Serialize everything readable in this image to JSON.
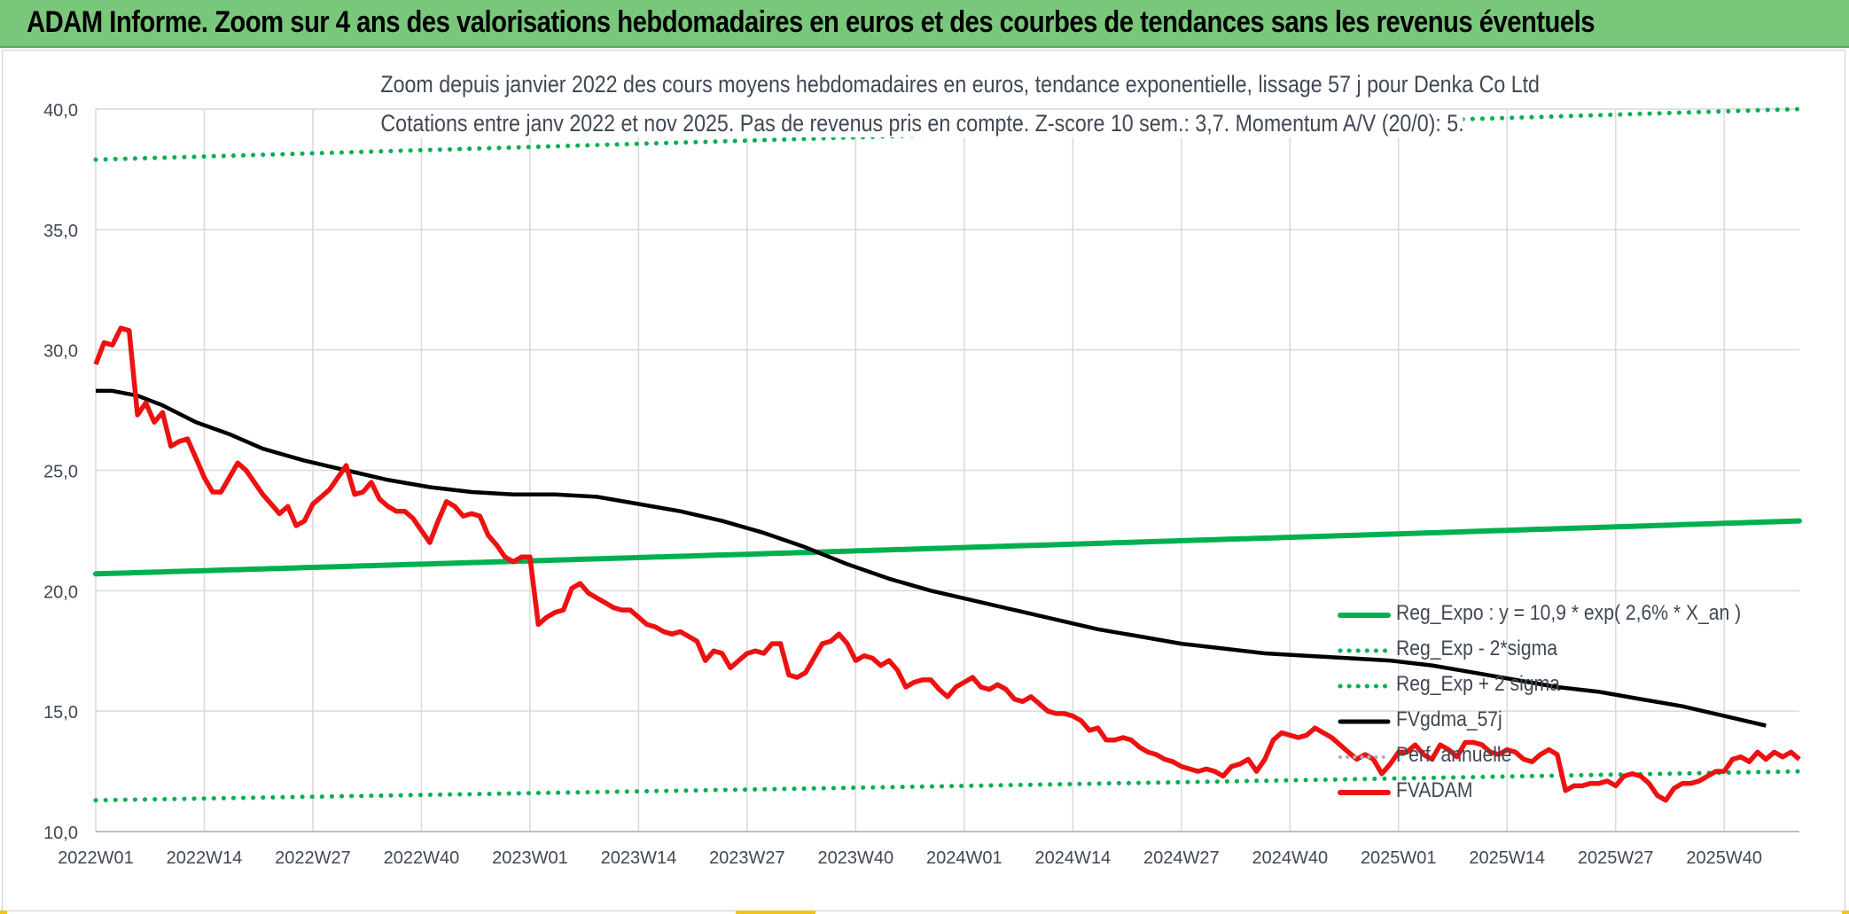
{
  "header": {
    "title": "ADAM Informe. Zoom sur 4 ans des valorisations hebdomadaires en euros et des courbes de tendances sans les revenus éventuels"
  },
  "colors": {
    "banner": "#79c77b",
    "price": "#ee1111",
    "trend": "#00b050",
    "mma": "#000000",
    "grid": "#d9d9d9",
    "text": "#404854"
  },
  "chart_data": {
    "type": "line",
    "title": "Zoom depuis janvier 2022 des cours moyens hebdomadaires en euros, tendance exponentielle, lissage 57 j pour Denka Co Ltd",
    "subtitle": "Cotations entre janv 2022 et nov 2025. Pas de revenus pris en compte. Z-score 10 sem.: 3,7. Momentum A/V (20/0): 5.",
    "xlabel": "",
    "ylabel": "",
    "ylim": [
      10,
      40
    ],
    "y_ticks": [
      "10,0",
      "15,0",
      "20,0",
      "25,0",
      "30,0",
      "35,0",
      "40,0"
    ],
    "x_ticks": [
      "2022W01",
      "2022W14",
      "2022W27",
      "2022W40",
      "2023W01",
      "2023W14",
      "2023W27",
      "2023W40",
      "2024W01",
      "2024W14",
      "2024W27",
      "2024W40",
      "2025W01",
      "2025W14",
      "2025W27",
      "2025W40"
    ],
    "n_weeks": 205,
    "grid": "vertical and horizontal",
    "legend_position": "right, lower-middle",
    "series": [
      {
        "name": "Reg_Expo : y = 10,9 * exp( 2,6% *  X_an )",
        "style": "solid-thick",
        "color": "#00b050",
        "values_from_to": [
          20.7,
          22.9
        ]
      },
      {
        "name": "Reg_Exp - 2*sigma",
        "style": "dotted",
        "color": "#00b050",
        "values_from_to": [
          11.3,
          12.5
        ]
      },
      {
        "name": "Reg_Exp + 2 sigma",
        "style": "dotted",
        "color": "#00b050",
        "values_from_to": [
          37.9,
          40.0
        ]
      },
      {
        "name": "FVgdma_57j",
        "style": "solid",
        "color": "#000000",
        "points": [
          [
            0,
            28.3
          ],
          [
            2,
            28.3
          ],
          [
            5,
            28.1
          ],
          [
            8,
            27.7
          ],
          [
            12,
            27.0
          ],
          [
            16,
            26.5
          ],
          [
            20,
            25.9
          ],
          [
            25,
            25.4
          ],
          [
            30,
            25.0
          ],
          [
            35,
            24.6
          ],
          [
            40,
            24.3
          ],
          [
            45,
            24.1
          ],
          [
            50,
            24.0
          ],
          [
            55,
            24.0
          ],
          [
            60,
            23.9
          ],
          [
            65,
            23.6
          ],
          [
            70,
            23.3
          ],
          [
            75,
            22.9
          ],
          [
            80,
            22.4
          ],
          [
            85,
            21.8
          ],
          [
            90,
            21.1
          ],
          [
            95,
            20.5
          ],
          [
            100,
            20.0
          ],
          [
            105,
            19.6
          ],
          [
            110,
            19.2
          ],
          [
            115,
            18.8
          ],
          [
            120,
            18.4
          ],
          [
            125,
            18.1
          ],
          [
            130,
            17.8
          ],
          [
            135,
            17.6
          ],
          [
            140,
            17.4
          ],
          [
            145,
            17.3
          ],
          [
            150,
            17.2
          ],
          [
            155,
            17.1
          ],
          [
            160,
            16.9
          ],
          [
            165,
            16.6
          ],
          [
            170,
            16.3
          ],
          [
            175,
            16.0
          ],
          [
            180,
            15.8
          ],
          [
            185,
            15.5
          ],
          [
            190,
            15.2
          ],
          [
            195,
            14.8
          ],
          [
            200,
            14.4
          ]
        ]
      },
      {
        "name": "Perf. annuelle",
        "style": "dotted",
        "color": "#b0b0b0"
      },
      {
        "name": "FVADAM",
        "style": "solid-thick",
        "color": "#ee1111",
        "points": [
          [
            0,
            29.4
          ],
          [
            1,
            30.3
          ],
          [
            2,
            30.2
          ],
          [
            3,
            30.9
          ],
          [
            4,
            30.8
          ],
          [
            5,
            27.3
          ],
          [
            6,
            27.8
          ],
          [
            7,
            27.0
          ],
          [
            8,
            27.4
          ],
          [
            9,
            26.0
          ],
          [
            10,
            26.2
          ],
          [
            11,
            26.3
          ],
          [
            12,
            25.5
          ],
          [
            13,
            24.7
          ],
          [
            14,
            24.1
          ],
          [
            15,
            24.1
          ],
          [
            16,
            24.7
          ],
          [
            17,
            25.3
          ],
          [
            18,
            25.0
          ],
          [
            19,
            24.5
          ],
          [
            20,
            24.0
          ],
          [
            21,
            23.6
          ],
          [
            22,
            23.2
          ],
          [
            23,
            23.5
          ],
          [
            24,
            22.7
          ],
          [
            25,
            22.9
          ],
          [
            26,
            23.6
          ],
          [
            27,
            23.9
          ],
          [
            28,
            24.2
          ],
          [
            29,
            24.7
          ],
          [
            30,
            25.2
          ],
          [
            31,
            24.0
          ],
          [
            32,
            24.1
          ],
          [
            33,
            24.5
          ],
          [
            34,
            23.8
          ],
          [
            35,
            23.5
          ],
          [
            36,
            23.3
          ],
          [
            37,
            23.3
          ],
          [
            38,
            23.0
          ],
          [
            39,
            22.5
          ],
          [
            40,
            22.0
          ],
          [
            41,
            22.9
          ],
          [
            42,
            23.7
          ],
          [
            43,
            23.5
          ],
          [
            44,
            23.1
          ],
          [
            45,
            23.2
          ],
          [
            46,
            23.1
          ],
          [
            47,
            22.3
          ],
          [
            48,
            21.9
          ],
          [
            49,
            21.4
          ],
          [
            50,
            21.2
          ],
          [
            51,
            21.4
          ],
          [
            52,
            21.4
          ],
          [
            53,
            18.6
          ],
          [
            54,
            18.9
          ],
          [
            55,
            19.1
          ],
          [
            56,
            19.2
          ],
          [
            57,
            20.1
          ],
          [
            58,
            20.3
          ],
          [
            59,
            19.9
          ],
          [
            60,
            19.7
          ],
          [
            61,
            19.5
          ],
          [
            62,
            19.3
          ],
          [
            63,
            19.2
          ],
          [
            64,
            19.2
          ],
          [
            65,
            18.9
          ],
          [
            66,
            18.6
          ],
          [
            67,
            18.5
          ],
          [
            68,
            18.3
          ],
          [
            69,
            18.2
          ],
          [
            70,
            18.3
          ],
          [
            71,
            18.1
          ],
          [
            72,
            17.9
          ],
          [
            73,
            17.1
          ],
          [
            74,
            17.5
          ],
          [
            75,
            17.4
          ],
          [
            76,
            16.8
          ],
          [
            77,
            17.1
          ],
          [
            78,
            17.4
          ],
          [
            79,
            17.5
          ],
          [
            80,
            17.4
          ],
          [
            81,
            17.8
          ],
          [
            82,
            17.8
          ],
          [
            83,
            16.5
          ],
          [
            84,
            16.4
          ],
          [
            85,
            16.6
          ],
          [
            86,
            17.2
          ],
          [
            87,
            17.8
          ],
          [
            88,
            17.9
          ],
          [
            89,
            18.2
          ],
          [
            90,
            17.8
          ],
          [
            91,
            17.1
          ],
          [
            92,
            17.3
          ],
          [
            93,
            17.2
          ],
          [
            94,
            16.9
          ],
          [
            95,
            17.1
          ],
          [
            96,
            16.7
          ],
          [
            97,
            16.0
          ],
          [
            98,
            16.2
          ],
          [
            99,
            16.3
          ],
          [
            100,
            16.3
          ],
          [
            101,
            15.9
          ],
          [
            102,
            15.6
          ],
          [
            103,
            16.0
          ],
          [
            104,
            16.2
          ],
          [
            105,
            16.4
          ],
          [
            106,
            16.0
          ],
          [
            107,
            15.9
          ],
          [
            108,
            16.1
          ],
          [
            109,
            15.9
          ],
          [
            110,
            15.5
          ],
          [
            111,
            15.4
          ],
          [
            112,
            15.6
          ],
          [
            113,
            15.3
          ],
          [
            114,
            15.0
          ],
          [
            115,
            14.9
          ],
          [
            116,
            14.9
          ],
          [
            117,
            14.8
          ],
          [
            118,
            14.6
          ],
          [
            119,
            14.2
          ],
          [
            120,
            14.3
          ],
          [
            121,
            13.8
          ],
          [
            122,
            13.8
          ],
          [
            123,
            13.9
          ],
          [
            124,
            13.8
          ],
          [
            125,
            13.5
          ],
          [
            126,
            13.3
          ],
          [
            127,
            13.2
          ],
          [
            128,
            13.0
          ],
          [
            129,
            12.9
          ],
          [
            130,
            12.7
          ],
          [
            131,
            12.6
          ],
          [
            132,
            12.5
          ],
          [
            133,
            12.6
          ],
          [
            134,
            12.5
          ],
          [
            135,
            12.3
          ],
          [
            136,
            12.7
          ],
          [
            137,
            12.8
          ],
          [
            138,
            13.0
          ],
          [
            139,
            12.5
          ],
          [
            140,
            13.0
          ],
          [
            141,
            13.8
          ],
          [
            142,
            14.1
          ],
          [
            143,
            14.0
          ],
          [
            144,
            13.9
          ],
          [
            145,
            14.0
          ],
          [
            146,
            14.3
          ],
          [
            147,
            14.1
          ],
          [
            148,
            13.9
          ],
          [
            149,
            13.6
          ],
          [
            150,
            13.3
          ],
          [
            151,
            13.0
          ],
          [
            152,
            13.2
          ],
          [
            153,
            13.0
          ],
          [
            154,
            12.4
          ],
          [
            155,
            12.8
          ],
          [
            156,
            13.3
          ],
          [
            157,
            13.3
          ],
          [
            158,
            13.6
          ],
          [
            159,
            13.2
          ],
          [
            160,
            13.0
          ],
          [
            161,
            13.6
          ],
          [
            162,
            13.4
          ],
          [
            163,
            13.1
          ],
          [
            164,
            13.7
          ],
          [
            165,
            13.7
          ],
          [
            166,
            13.6
          ],
          [
            167,
            13.3
          ],
          [
            168,
            13.2
          ],
          [
            169,
            13.4
          ],
          [
            170,
            13.3
          ],
          [
            171,
            13.0
          ],
          [
            172,
            12.9
          ],
          [
            173,
            13.2
          ],
          [
            174,
            13.4
          ],
          [
            175,
            13.2
          ],
          [
            176,
            11.7
          ],
          [
            177,
            11.9
          ],
          [
            178,
            11.9
          ],
          [
            179,
            12.0
          ],
          [
            180,
            12.0
          ],
          [
            181,
            12.1
          ],
          [
            182,
            11.9
          ],
          [
            183,
            12.3
          ],
          [
            184,
            12.4
          ],
          [
            185,
            12.3
          ],
          [
            186,
            12.0
          ],
          [
            187,
            11.5
          ],
          [
            188,
            11.3
          ],
          [
            189,
            11.8
          ],
          [
            190,
            12.0
          ],
          [
            191,
            12.0
          ],
          [
            192,
            12.1
          ],
          [
            193,
            12.3
          ],
          [
            194,
            12.5
          ],
          [
            195,
            12.5
          ],
          [
            196,
            13.0
          ],
          [
            197,
            13.1
          ],
          [
            198,
            12.9
          ],
          [
            199,
            13.3
          ],
          [
            200,
            13.0
          ],
          [
            201,
            13.3
          ],
          [
            202,
            13.1
          ],
          [
            203,
            13.3
          ],
          [
            204,
            13.0
          ]
        ]
      }
    ],
    "legend": [
      "Reg_Expo : y = 10,9 * exp( 2,6% *  X_an )",
      "Reg_Exp - 2*sigma",
      "Reg_Exp + 2 sigma",
      "FVgdma_57j",
      "Perf. annuelle",
      "FVADAM"
    ]
  }
}
